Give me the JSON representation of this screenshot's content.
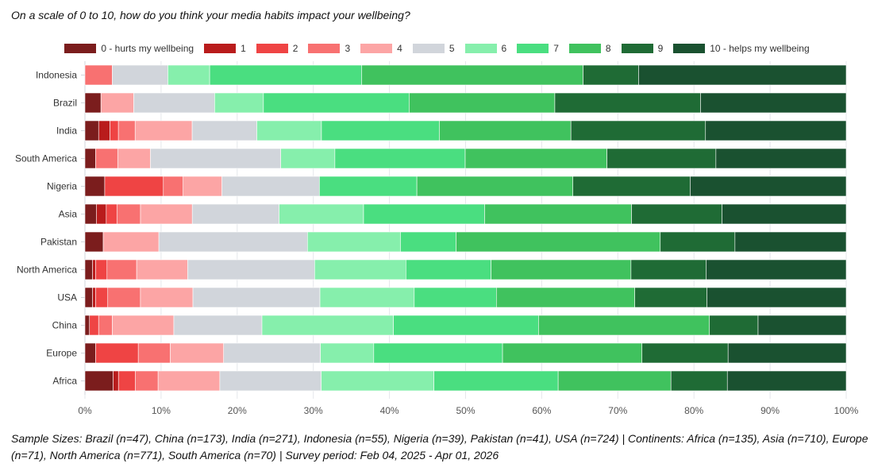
{
  "chart_data": {
    "type": "bar",
    "orientation": "horizontal",
    "stacked": true,
    "title": "On a scale of 0 to 10, how do you think your media habits impact your wellbeing?",
    "legend_position": "top",
    "categories": [
      "Indonesia",
      "Brazil",
      "India",
      "South America",
      "Nigeria",
      "Asia",
      "Pakistan",
      "North America",
      "USA",
      "China",
      "Europe",
      "Africa"
    ],
    "series": [
      {
        "name": "0 - hurts my wellbeing",
        "color": "#7b1d1d",
        "values": [
          0,
          2.1,
          1.8,
          1.4,
          2.6,
          1.5,
          2.4,
          1.0,
          1.0,
          0.6,
          1.4,
          3.7
        ]
      },
      {
        "name": "1",
        "color": "#b91c1c",
        "values": [
          0,
          0,
          1.5,
          0,
          0,
          1.3,
          0,
          0.4,
          0.4,
          0,
          0,
          0.7
        ]
      },
      {
        "name": "2",
        "color": "#ef4444",
        "values": [
          0,
          0,
          1.1,
          0,
          7.7,
          1.4,
          0,
          1.5,
          1.6,
          1.2,
          5.6,
          2.2
        ]
      },
      {
        "name": "3",
        "color": "#f87171",
        "values": [
          3.6,
          0,
          2.2,
          2.9,
          2.6,
          3.1,
          0,
          3.9,
          4.3,
          1.8,
          4.2,
          3.0
        ]
      },
      {
        "name": "4",
        "color": "#fca5a5",
        "values": [
          0,
          4.3,
          7.5,
          4.3,
          5.1,
          6.8,
          7.3,
          6.7,
          6.9,
          8.1,
          7.0,
          8.1
        ]
      },
      {
        "name": "5",
        "color": "#d1d5db",
        "values": [
          7.3,
          10.6,
          8.5,
          17.1,
          12.8,
          11.4,
          19.5,
          16.7,
          16.7,
          11.6,
          12.7,
          13.3
        ]
      },
      {
        "name": "6",
        "color": "#86efac",
        "values": [
          5.5,
          6.4,
          8.5,
          7.1,
          0,
          11.1,
          12.2,
          12.0,
          12.4,
          17.3,
          7.0,
          14.8
        ]
      },
      {
        "name": "7",
        "color": "#4ade80",
        "values": [
          20.0,
          19.1,
          15.5,
          17.1,
          12.8,
          15.9,
          7.3,
          11.2,
          10.8,
          19.1,
          16.9,
          16.3
        ]
      },
      {
        "name": "8",
        "color": "#40c25e",
        "values": [
          29.1,
          19.1,
          17.3,
          18.6,
          20.5,
          19.3,
          26.8,
          18.4,
          18.2,
          22.5,
          18.3,
          14.8
        ]
      },
      {
        "name": "9",
        "color": "#1f6b35",
        "values": [
          7.3,
          19.1,
          17.7,
          14.3,
          15.4,
          11.9,
          9.8,
          9.9,
          9.5,
          6.4,
          11.3,
          7.4
        ]
      },
      {
        "name": "10 - helps my wellbeing",
        "color": "#1a5130",
        "values": [
          27.3,
          19.1,
          18.5,
          17.1,
          20.5,
          16.3,
          14.6,
          18.4,
          18.3,
          11.6,
          15.5,
          15.6
        ]
      }
    ],
    "xlim": [
      0,
      100
    ],
    "xticks": [
      "0%",
      "10%",
      "20%",
      "30%",
      "40%",
      "50%",
      "60%",
      "70%",
      "80%",
      "90%",
      "100%"
    ]
  },
  "note": "Sample Sizes: Brazil (n=47), China (n=173), India (n=271), Indonesia (n=55), Nigeria (n=39), Pakistan (n=41), USA (n=724) | Continents: Africa (n=135), Asia (n=710), Europe (n=71), North America (n=771), South America (n=70) | Survey period: Feb 04, 2025 - Apr 01, 2026"
}
